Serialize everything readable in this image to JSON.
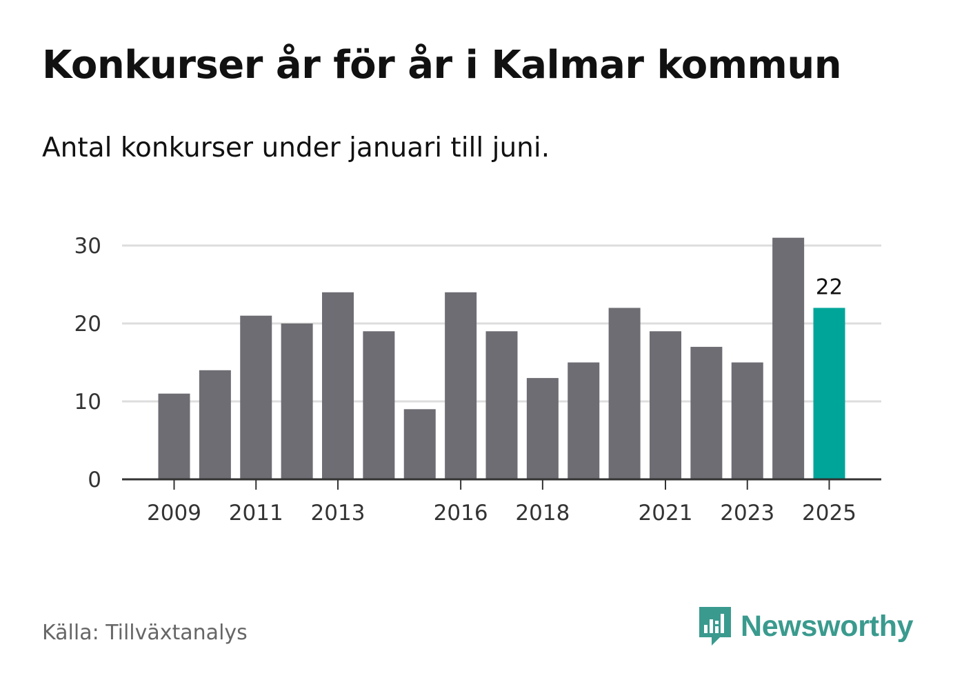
{
  "title": "Konkurser år för år i Kalmar kommun",
  "subtitle": "Antal konkurser under januari till juni.",
  "source": "Källa: Tillväxtanalys",
  "brand": {
    "name": "Newsworthy",
    "icon": "newsworthy-logo-icon",
    "color": "#3a9a8e"
  },
  "colors": {
    "bar": "#6e6d73",
    "highlight": "#00a59a",
    "grid": "#dddddd",
    "axis": "#333333"
  },
  "chart_data": {
    "type": "bar",
    "title": "Konkurser år för år i Kalmar kommun",
    "subtitle": "Antal konkurser under januari till juni.",
    "categories": [
      "2009",
      "2010",
      "2011",
      "2012",
      "2013",
      "2014",
      "2015",
      "2016",
      "2017",
      "2018",
      "2019",
      "2020",
      "2021",
      "2022",
      "2023",
      "2024",
      "2025"
    ],
    "values": [
      11,
      14,
      21,
      20,
      24,
      19,
      9,
      24,
      19,
      13,
      15,
      22,
      19,
      17,
      15,
      31,
      22
    ],
    "x_tick_labels": [
      "2009",
      "2011",
      "2013",
      "2016",
      "2018",
      "2021",
      "2023",
      "2025"
    ],
    "y_ticks": [
      0,
      10,
      20,
      30
    ],
    "ylim": [
      0,
      32
    ],
    "highlight": {
      "category": "2025",
      "label": "22"
    },
    "grid": "horizontal",
    "xlabel": "",
    "ylabel": ""
  }
}
